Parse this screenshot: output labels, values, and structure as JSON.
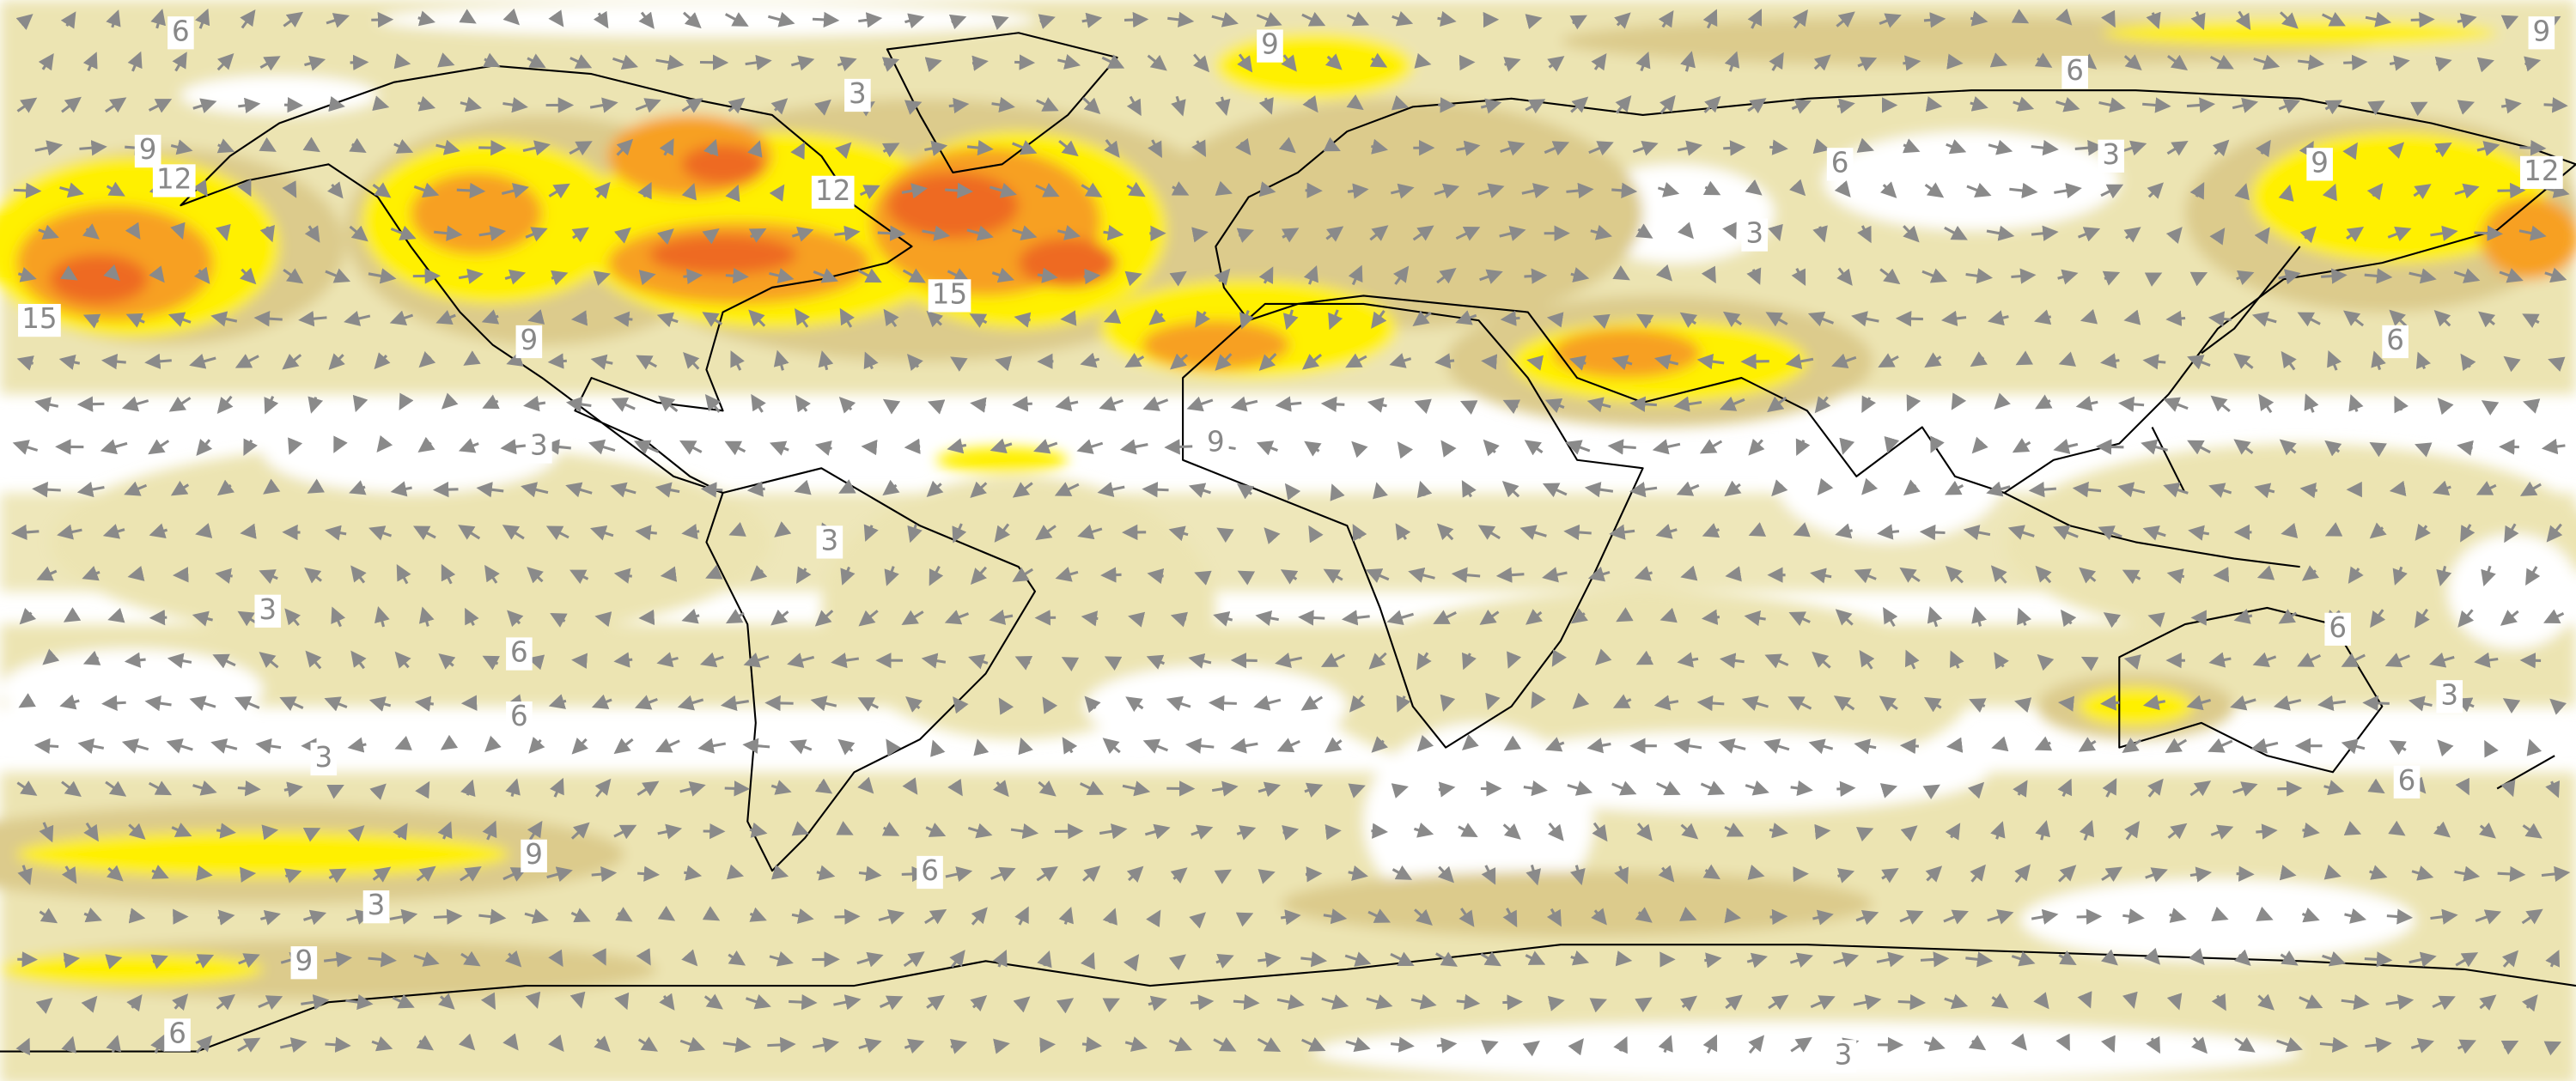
{
  "contour_labels": [
    "6",
    "9",
    "9",
    "3",
    "6",
    "9",
    "12",
    "6",
    "3",
    "9",
    "12",
    "12",
    "15",
    "15",
    "3",
    "6",
    "9",
    "3",
    "9",
    "3",
    "3",
    "6",
    "6",
    "6",
    "3",
    "3",
    "6",
    "9",
    "6",
    "3",
    "9",
    "6",
    "3"
  ]
}
